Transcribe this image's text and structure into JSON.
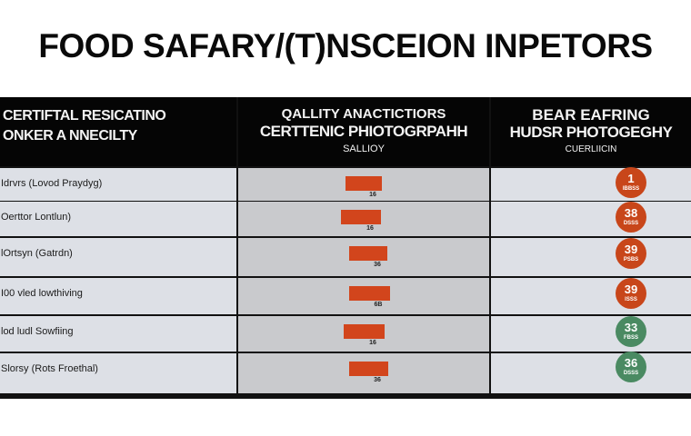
{
  "title": "FOOD SAFARY/(T)NSCEION INPETORS",
  "headers": {
    "col1": [
      "CERTIFTAL RESICATINO",
      "ONKER A NNECILTY"
    ],
    "col2": [
      "QALLITY ANACTICTIORS",
      "CERTTENIC PHIOTOGRPAHH",
      "SALLIOY"
    ],
    "col3": [
      "BEAR EAFRING",
      "HUDSR PHOTOGEGHY",
      "CUERLIICIN"
    ]
  },
  "colors": {
    "bar": "#d2451c",
    "badge_orange": "#c8461a",
    "badge_green": "#4a8a62",
    "header_bg": "#050505"
  },
  "chart_data": {
    "type": "table",
    "bar_scale_max": 100,
    "rows": [
      {
        "label": "Idrvrs (Lovod Praydyg)",
        "bar": 40,
        "bar_label": "16",
        "badge": "1",
        "badge_sub": "IBBSS",
        "badge_color": "orange"
      },
      {
        "label": "Oerttor Lontlun)",
        "bar": 44,
        "bar_label": "16",
        "badge": "38",
        "badge_sub": "DSSS",
        "badge_color": "orange"
      },
      {
        "label": "lOrtsyn (Gatrdn)",
        "bar": 42,
        "bar_label": "36",
        "badge": "39",
        "badge_sub": "PSBS",
        "badge_color": "orange"
      },
      {
        "label": "I00 vled lowthiving",
        "bar": 45,
        "bar_label": "6B",
        "badge": "39",
        "badge_sub": "ISSS",
        "badge_color": "orange"
      },
      {
        "label": "lod ludl Sowfiing",
        "bar": 45,
        "bar_label": "16",
        "badge": "33",
        "badge_sub": "FBSS",
        "badge_color": "green"
      },
      {
        "label": "Slorsy (Rots Froethal)",
        "bar": 43,
        "bar_label": "36",
        "badge": "36",
        "badge_sub": "DSSS",
        "badge_color": "green"
      }
    ]
  }
}
